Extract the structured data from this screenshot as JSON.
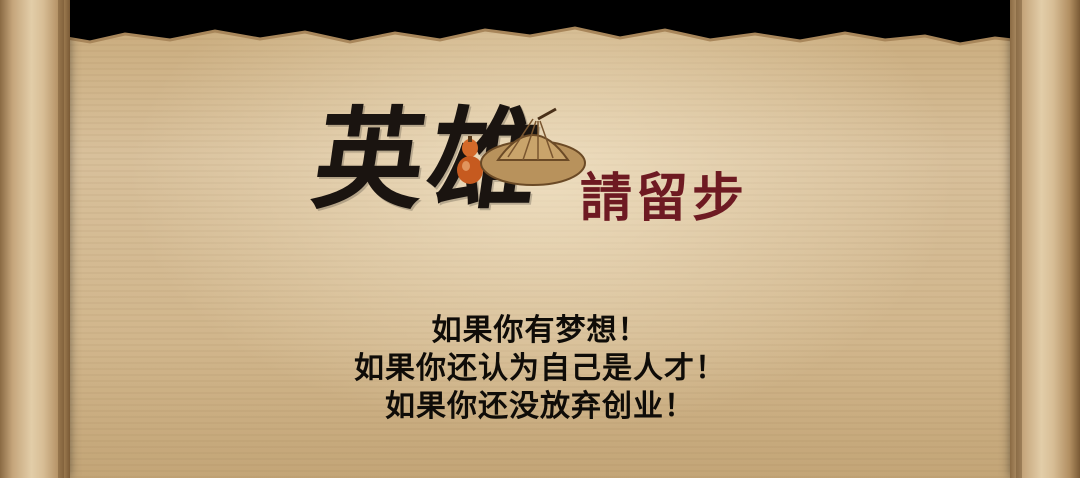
{
  "banner": {
    "title": "英雄",
    "subtitle": "請留步",
    "lines": [
      "如果你有梦想！",
      "如果你还认为自己是人才！",
      "如果你还没放弃创业！"
    ]
  },
  "colors": {
    "paper": "#d8c09b",
    "title_ink": "#1a1410",
    "subtitle_ink": "#6e1a22",
    "body_text": "#0f0c08"
  },
  "icons": [
    "gourd-icon",
    "straw-hat-icon",
    "scroll-roll"
  ]
}
